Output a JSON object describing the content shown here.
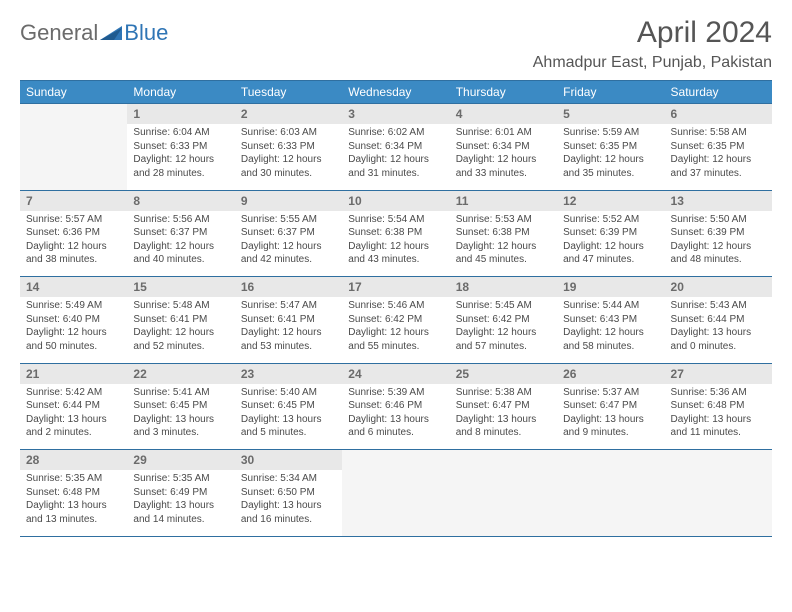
{
  "brand": {
    "part1": "General",
    "part2": "Blue"
  },
  "title": "April 2024",
  "location": "Ahmadpur East, Punjab, Pakistan",
  "colors": {
    "header_bg": "#3b8ac4",
    "header_text": "#ffffff",
    "daynum_bg": "#e8e8e8",
    "daynum_text": "#6b6b6b",
    "border": "#2f6fa0",
    "body_text": "#4a4a4a",
    "title_text": "#555555",
    "brand_gray": "#6b6b6b",
    "brand_blue": "#2f75b5"
  },
  "day_headers": [
    "Sunday",
    "Monday",
    "Tuesday",
    "Wednesday",
    "Thursday",
    "Friday",
    "Saturday"
  ],
  "weeks": [
    [
      null,
      {
        "d": "1",
        "sr": "Sunrise: 6:04 AM",
        "ss": "Sunset: 6:33 PM",
        "dl1": "Daylight: 12 hours",
        "dl2": "and 28 minutes."
      },
      {
        "d": "2",
        "sr": "Sunrise: 6:03 AM",
        "ss": "Sunset: 6:33 PM",
        "dl1": "Daylight: 12 hours",
        "dl2": "and 30 minutes."
      },
      {
        "d": "3",
        "sr": "Sunrise: 6:02 AM",
        "ss": "Sunset: 6:34 PM",
        "dl1": "Daylight: 12 hours",
        "dl2": "and 31 minutes."
      },
      {
        "d": "4",
        "sr": "Sunrise: 6:01 AM",
        "ss": "Sunset: 6:34 PM",
        "dl1": "Daylight: 12 hours",
        "dl2": "and 33 minutes."
      },
      {
        "d": "5",
        "sr": "Sunrise: 5:59 AM",
        "ss": "Sunset: 6:35 PM",
        "dl1": "Daylight: 12 hours",
        "dl2": "and 35 minutes."
      },
      {
        "d": "6",
        "sr": "Sunrise: 5:58 AM",
        "ss": "Sunset: 6:35 PM",
        "dl1": "Daylight: 12 hours",
        "dl2": "and 37 minutes."
      }
    ],
    [
      {
        "d": "7",
        "sr": "Sunrise: 5:57 AM",
        "ss": "Sunset: 6:36 PM",
        "dl1": "Daylight: 12 hours",
        "dl2": "and 38 minutes."
      },
      {
        "d": "8",
        "sr": "Sunrise: 5:56 AM",
        "ss": "Sunset: 6:37 PM",
        "dl1": "Daylight: 12 hours",
        "dl2": "and 40 minutes."
      },
      {
        "d": "9",
        "sr": "Sunrise: 5:55 AM",
        "ss": "Sunset: 6:37 PM",
        "dl1": "Daylight: 12 hours",
        "dl2": "and 42 minutes."
      },
      {
        "d": "10",
        "sr": "Sunrise: 5:54 AM",
        "ss": "Sunset: 6:38 PM",
        "dl1": "Daylight: 12 hours",
        "dl2": "and 43 minutes."
      },
      {
        "d": "11",
        "sr": "Sunrise: 5:53 AM",
        "ss": "Sunset: 6:38 PM",
        "dl1": "Daylight: 12 hours",
        "dl2": "and 45 minutes."
      },
      {
        "d": "12",
        "sr": "Sunrise: 5:52 AM",
        "ss": "Sunset: 6:39 PM",
        "dl1": "Daylight: 12 hours",
        "dl2": "and 47 minutes."
      },
      {
        "d": "13",
        "sr": "Sunrise: 5:50 AM",
        "ss": "Sunset: 6:39 PM",
        "dl1": "Daylight: 12 hours",
        "dl2": "and 48 minutes."
      }
    ],
    [
      {
        "d": "14",
        "sr": "Sunrise: 5:49 AM",
        "ss": "Sunset: 6:40 PM",
        "dl1": "Daylight: 12 hours",
        "dl2": "and 50 minutes."
      },
      {
        "d": "15",
        "sr": "Sunrise: 5:48 AM",
        "ss": "Sunset: 6:41 PM",
        "dl1": "Daylight: 12 hours",
        "dl2": "and 52 minutes."
      },
      {
        "d": "16",
        "sr": "Sunrise: 5:47 AM",
        "ss": "Sunset: 6:41 PM",
        "dl1": "Daylight: 12 hours",
        "dl2": "and 53 minutes."
      },
      {
        "d": "17",
        "sr": "Sunrise: 5:46 AM",
        "ss": "Sunset: 6:42 PM",
        "dl1": "Daylight: 12 hours",
        "dl2": "and 55 minutes."
      },
      {
        "d": "18",
        "sr": "Sunrise: 5:45 AM",
        "ss": "Sunset: 6:42 PM",
        "dl1": "Daylight: 12 hours",
        "dl2": "and 57 minutes."
      },
      {
        "d": "19",
        "sr": "Sunrise: 5:44 AM",
        "ss": "Sunset: 6:43 PM",
        "dl1": "Daylight: 12 hours",
        "dl2": "and 58 minutes."
      },
      {
        "d": "20",
        "sr": "Sunrise: 5:43 AM",
        "ss": "Sunset: 6:44 PM",
        "dl1": "Daylight: 13 hours",
        "dl2": "and 0 minutes."
      }
    ],
    [
      {
        "d": "21",
        "sr": "Sunrise: 5:42 AM",
        "ss": "Sunset: 6:44 PM",
        "dl1": "Daylight: 13 hours",
        "dl2": "and 2 minutes."
      },
      {
        "d": "22",
        "sr": "Sunrise: 5:41 AM",
        "ss": "Sunset: 6:45 PM",
        "dl1": "Daylight: 13 hours",
        "dl2": "and 3 minutes."
      },
      {
        "d": "23",
        "sr": "Sunrise: 5:40 AM",
        "ss": "Sunset: 6:45 PM",
        "dl1": "Daylight: 13 hours",
        "dl2": "and 5 minutes."
      },
      {
        "d": "24",
        "sr": "Sunrise: 5:39 AM",
        "ss": "Sunset: 6:46 PM",
        "dl1": "Daylight: 13 hours",
        "dl2": "and 6 minutes."
      },
      {
        "d": "25",
        "sr": "Sunrise: 5:38 AM",
        "ss": "Sunset: 6:47 PM",
        "dl1": "Daylight: 13 hours",
        "dl2": "and 8 minutes."
      },
      {
        "d": "26",
        "sr": "Sunrise: 5:37 AM",
        "ss": "Sunset: 6:47 PM",
        "dl1": "Daylight: 13 hours",
        "dl2": "and 9 minutes."
      },
      {
        "d": "27",
        "sr": "Sunrise: 5:36 AM",
        "ss": "Sunset: 6:48 PM",
        "dl1": "Daylight: 13 hours",
        "dl2": "and 11 minutes."
      }
    ],
    [
      {
        "d": "28",
        "sr": "Sunrise: 5:35 AM",
        "ss": "Sunset: 6:48 PM",
        "dl1": "Daylight: 13 hours",
        "dl2": "and 13 minutes."
      },
      {
        "d": "29",
        "sr": "Sunrise: 5:35 AM",
        "ss": "Sunset: 6:49 PM",
        "dl1": "Daylight: 13 hours",
        "dl2": "and 14 minutes."
      },
      {
        "d": "30",
        "sr": "Sunrise: 5:34 AM",
        "ss": "Sunset: 6:50 PM",
        "dl1": "Daylight: 13 hours",
        "dl2": "and 16 minutes."
      },
      null,
      null,
      null,
      null
    ]
  ]
}
